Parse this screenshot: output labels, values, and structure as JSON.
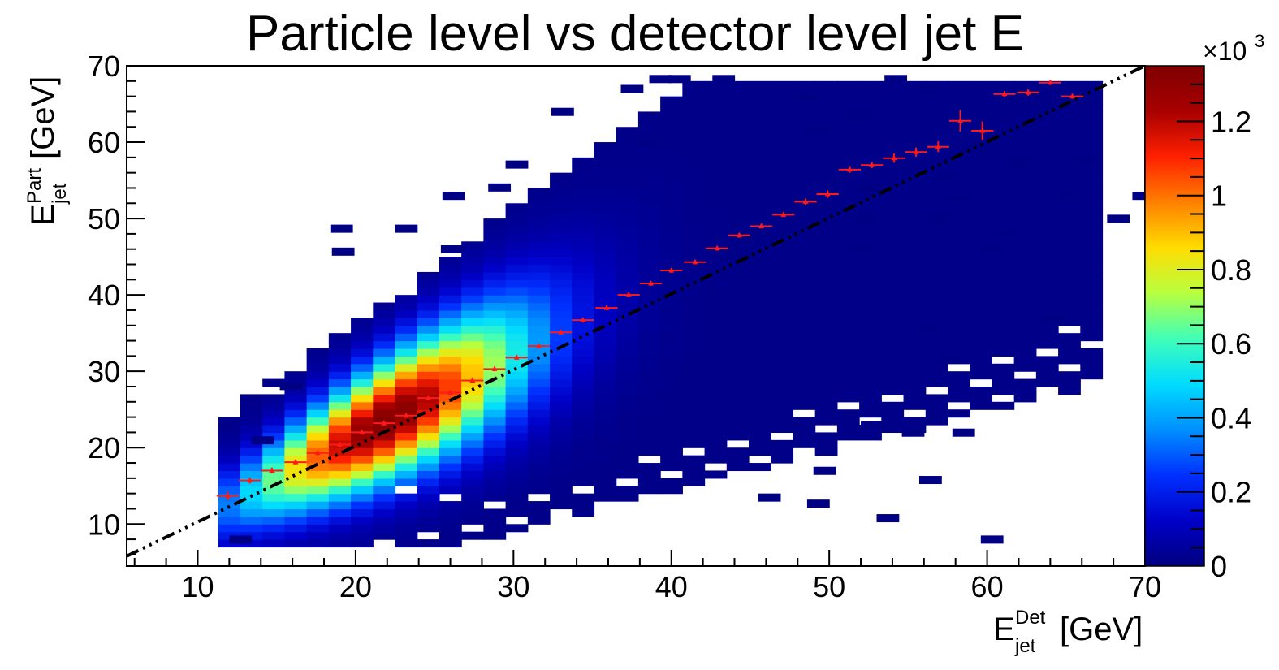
{
  "chart_data": {
    "type": "heatmap",
    "title": "Particle level vs detector level jet E",
    "x_axis": {
      "label_main": "E",
      "label_sup": "Det",
      "label_sub": "jet",
      "label_unit": "[GeV]",
      "range": [
        5.5,
        70
      ],
      "major_ticks": [
        10,
        20,
        30,
        40,
        50,
        60,
        70
      ],
      "tick_labels": [
        "10",
        "20",
        "30",
        "40",
        "50",
        "60",
        "70"
      ]
    },
    "y_axis": {
      "label_main": "E",
      "label_sup": "Part",
      "label_sub": "jet",
      "label_unit": "[GeV]",
      "range": [
        4.5,
        70
      ],
      "major_ticks": [
        10,
        20,
        30,
        40,
        50,
        60,
        70
      ],
      "tick_labels": [
        "10",
        "20",
        "30",
        "40",
        "50",
        "60",
        "70"
      ]
    },
    "colorbar": {
      "range": [
        0,
        1.35
      ],
      "multiplier": "×10",
      "multiplier_exp": "3",
      "ticks": [
        0,
        0.2,
        0.4,
        0.6,
        0.8,
        1,
        1.2
      ],
      "tick_labels": [
        "0",
        "0.2",
        "0.4",
        "0.6",
        "0.8",
        "1",
        "1.2"
      ],
      "palette": [
        "#00007f",
        "#0000c8",
        "#0030ff",
        "#0090ff",
        "#00dcff",
        "#40ffb8",
        "#b8ff40",
        "#ffdc00",
        "#ff8000",
        "#ff2000",
        "#a80000",
        "#7f0000"
      ]
    },
    "bin_width": 1.4,
    "bin_height": 1.0,
    "cell_gaps": [
      [
        11.3,
        60
      ],
      [
        22.5,
        14
      ],
      [
        25.3,
        13
      ]
    ],
    "distribution": {
      "ridge_slope": 1.1,
      "ridge_intercept": -0.6,
      "peak_E_det": 22,
      "peak_value": 1.32,
      "support_x": [
        11.3,
        66
      ]
    },
    "reference_line": {
      "style": "dash-dot",
      "color": "#000000",
      "points": [
        [
          5.5,
          5.8
        ],
        [
          70,
          70
        ]
      ]
    },
    "profile": {
      "color": "#ff1a1a",
      "x": [
        11.9,
        13.3,
        14.7,
        16.2,
        17.6,
        19.0,
        20.4,
        21.8,
        23.2,
        24.6,
        26.0,
        27.4,
        28.8,
        30.2,
        31.6,
        33.0,
        34.4,
        35.9,
        37.3,
        38.7,
        40.0,
        41.5,
        42.9,
        44.3,
        45.7,
        47.1,
        48.5,
        49.9,
        51.3,
        52.7,
        54.1,
        55.5,
        56.9,
        58.3,
        59.7,
        61.1,
        62.6,
        64.0,
        65.4
      ],
      "y": [
        13.7,
        15.7,
        17.0,
        18.1,
        19.3,
        20.4,
        22.0,
        23.2,
        24.2,
        26.5,
        27.2,
        28.8,
        30.3,
        31.8,
        33.3,
        35.1,
        36.7,
        38.3,
        40.0,
        41.5,
        43.2,
        44.3,
        46.1,
        47.8,
        49.0,
        50.5,
        52.2,
        53.2,
        56.4,
        57.0,
        57.9,
        58.7,
        59.4,
        62.8,
        61.5,
        66.3,
        66.5,
        67.8,
        66.0
      ],
      "y_err": [
        0.6,
        0.4,
        0.4,
        0.3,
        0.3,
        0.3,
        0.3,
        0.3,
        0.3,
        0.3,
        0.3,
        0.3,
        0.3,
        0.3,
        0.3,
        0.3,
        0.3,
        0.3,
        0.3,
        0.3,
        0.3,
        0.3,
        0.3,
        0.3,
        0.3,
        0.3,
        0.4,
        0.5,
        0.4,
        0.4,
        0.6,
        0.6,
        0.7,
        1.4,
        1.2,
        0.4,
        0.4,
        0.3,
        0.3
      ]
    },
    "outliers": [
      [
        12,
        7.5
      ],
      [
        13.4,
        20.5
      ],
      [
        15.2,
        27.6
      ],
      [
        18.4,
        48.2
      ],
      [
        22.5,
        48.2
      ],
      [
        18.5,
        45.2
      ],
      [
        25.4,
        45.5
      ],
      [
        25.5,
        52.5
      ],
      [
        28.4,
        53.6
      ],
      [
        29.5,
        56.6
      ],
      [
        32.4,
        63.5
      ],
      [
        36.8,
        66.5
      ],
      [
        37.6,
        59.5
      ],
      [
        38.6,
        67.8
      ],
      [
        39.8,
        67.8
      ],
      [
        42.6,
        67.8
      ],
      [
        47.8,
        65.5
      ],
      [
        48.5,
        61.0
      ],
      [
        53.5,
        67.8
      ],
      [
        55.6,
        66.5
      ],
      [
        51.2,
        63.0
      ],
      [
        51.2,
        45.5
      ],
      [
        51.6,
        49.5
      ],
      [
        51.9,
        53.5
      ],
      [
        57.5,
        52.2
      ],
      [
        56.2,
        49.5
      ],
      [
        60.5,
        47.5
      ],
      [
        59.6,
        45.5
      ],
      [
        56.6,
        54.8
      ],
      [
        61.5,
        57.0
      ],
      [
        61.3,
        56.5
      ],
      [
        65.5,
        57.3
      ],
      [
        64.5,
        52.5
      ],
      [
        67.6,
        49.5
      ],
      [
        69.2,
        52.5
      ],
      [
        63.5,
        36.5
      ],
      [
        55.6,
        35.2
      ],
      [
        57.0,
        31.2
      ],
      [
        54.6,
        21.5
      ],
      [
        55.7,
        15.3
      ],
      [
        57.8,
        21.5
      ],
      [
        52.0,
        22.5
      ],
      [
        48.6,
        12.2
      ],
      [
        53.0,
        10.3
      ],
      [
        59.6,
        7.5
      ],
      [
        45.5,
        13.0
      ],
      [
        49.0,
        16.5
      ]
    ]
  }
}
